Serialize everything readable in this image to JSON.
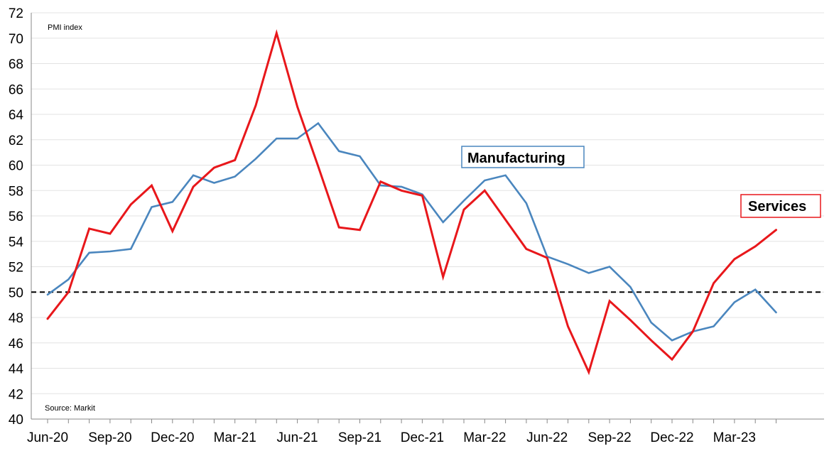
{
  "chart_data": {
    "type": "line",
    "ylabel": "PMI index",
    "source_note": "Source: Markit",
    "ylim": [
      40,
      72
    ],
    "y_ticks": [
      40,
      42,
      44,
      46,
      48,
      50,
      52,
      54,
      56,
      58,
      60,
      62,
      64,
      66,
      68,
      70,
      72
    ],
    "x_tick_labels": [
      "Jun-20",
      "Sep-20",
      "Dec-20",
      "Mar-21",
      "Jun-21",
      "Sep-21",
      "Dec-21",
      "Mar-22",
      "Jun-22",
      "Sep-22",
      "Dec-22",
      "Mar-23"
    ],
    "x": [
      "Jun-20",
      "Jul-20",
      "Aug-20",
      "Sep-20",
      "Oct-20",
      "Nov-20",
      "Dec-20",
      "Jan-21",
      "Feb-21",
      "Mar-21",
      "Apr-21",
      "May-21",
      "Jun-21",
      "Jul-21",
      "Aug-21",
      "Sep-21",
      "Oct-21",
      "Nov-21",
      "Dec-21",
      "Jan-22",
      "Feb-22",
      "Mar-22",
      "Apr-22",
      "May-22",
      "Jun-22",
      "Jul-22",
      "Aug-22",
      "Sep-22",
      "Oct-22",
      "Nov-22",
      "Dec-22",
      "Jan-23",
      "Feb-23",
      "Mar-23",
      "Apr-23",
      "May-23"
    ],
    "reference_line": {
      "y": 50,
      "style": "dashed"
    },
    "grid": {
      "horizontal": true,
      "vertical": false
    },
    "series": [
      {
        "name": "Manufacturing",
        "color": "#4a86be",
        "values": [
          49.8,
          51.0,
          53.1,
          53.2,
          53.4,
          56.7,
          57.1,
          59.2,
          58.6,
          59.1,
          60.5,
          62.1,
          62.1,
          63.3,
          61.1,
          60.7,
          58.4,
          58.3,
          57.7,
          55.5,
          57.2,
          58.8,
          59.2,
          57.0,
          52.8,
          52.2,
          51.5,
          52.0,
          50.4,
          47.6,
          46.2,
          46.9,
          47.3,
          49.2,
          50.2,
          48.4
        ]
      },
      {
        "name": "Services",
        "color": "#e8171b",
        "values": [
          47.9,
          50.0,
          55.0,
          54.6,
          56.9,
          58.4,
          54.8,
          58.3,
          59.8,
          60.4,
          64.7,
          70.4,
          64.6,
          59.9,
          55.1,
          54.9,
          58.7,
          58.0,
          57.6,
          51.2,
          56.5,
          58.0,
          55.7,
          53.4,
          52.7,
          47.3,
          43.7,
          49.3,
          47.8,
          46.2,
          44.7,
          46.9,
          50.7,
          52.6,
          53.6,
          54.9
        ]
      }
    ],
    "legend": {
      "manufacturing_label": "Manufacturing",
      "services_label": "Services",
      "placement": "inline labels"
    }
  }
}
